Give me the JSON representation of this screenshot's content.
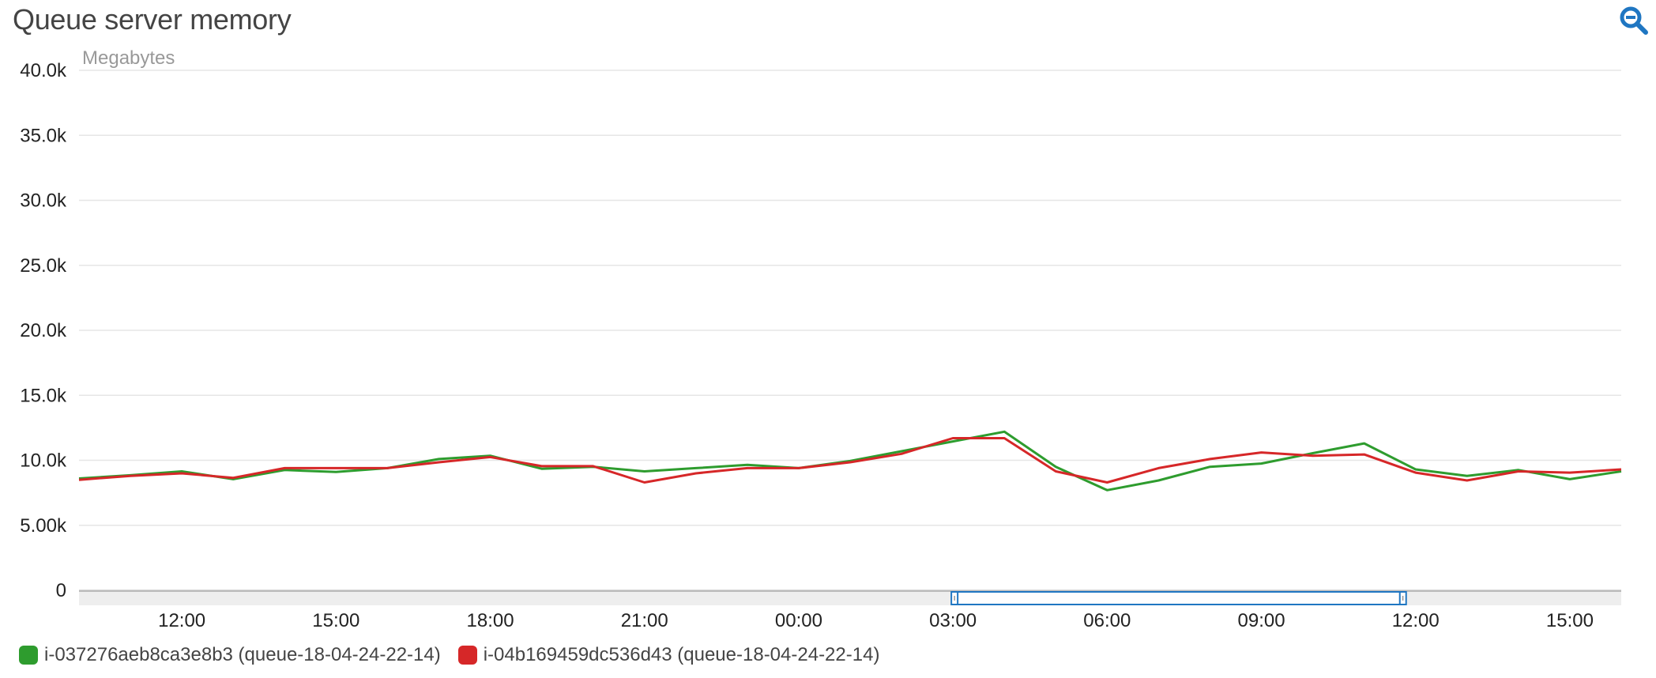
{
  "title": "Queue server memory",
  "zoom_icon": "zoom-out-icon",
  "colors": {
    "accent": "#1f76c2",
    "series_green": "#2e9c2e",
    "series_red": "#d62728",
    "grid": "#e6e6e6",
    "navigator": "#eeeeee"
  },
  "chart_data": {
    "type": "line",
    "ylabel": "Megabytes",
    "ylim": [
      0,
      40000
    ],
    "y_ticks": [
      "0",
      "5.00k",
      "10.0k",
      "15.0k",
      "20.0k",
      "25.0k",
      "30.0k",
      "35.0k",
      "40.0k"
    ],
    "x_ticks": [
      "12:00",
      "15:00",
      "18:00",
      "21:00",
      "00:00",
      "03:00",
      "06:00",
      "09:00",
      "12:00",
      "15:00"
    ],
    "x_start": "10:00",
    "x_step_hours": 1,
    "grid": true,
    "legend_position": "bottom-left",
    "series": [
      {
        "name": "i-037276aeb8ca3e8b3 (queue-18-04-24-22-14)",
        "color": "#2e9c2e",
        "values": [
          8600,
          8850,
          9150,
          8550,
          9250,
          9100,
          9400,
          10100,
          10350,
          9350,
          9500,
          9150,
          9400,
          9650,
          9400,
          9950,
          10700,
          11450,
          12200,
          9500,
          7700,
          8450,
          9500,
          9750,
          10550,
          11300,
          9300,
          8800,
          9250,
          8550,
          9150
        ]
      },
      {
        "name": "i-04b169459dc536d43 (queue-18-04-24-22-14)",
        "color": "#d62728",
        "values": [
          8500,
          8800,
          9000,
          8650,
          9400,
          9400,
          9400,
          9850,
          10250,
          9550,
          9550,
          8300,
          9000,
          9400,
          9400,
          9850,
          10500,
          11700,
          11700,
          9150,
          8300,
          9400,
          10100,
          10600,
          10350,
          10450,
          9050,
          8450,
          9150,
          9050,
          9300
        ]
      }
    ]
  }
}
